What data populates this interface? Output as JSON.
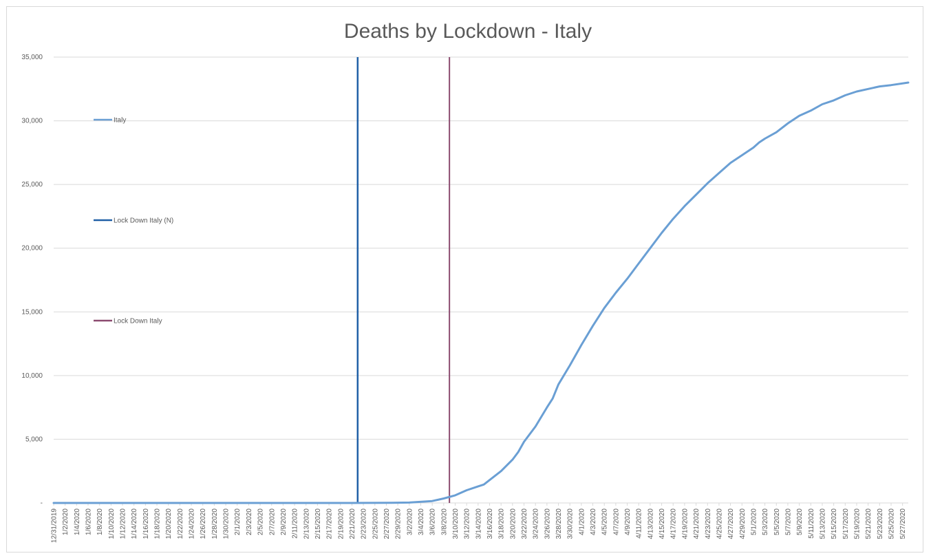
{
  "chart_data": {
    "type": "line",
    "title": "Deaths by Lockdown - Italy",
    "xlabel": "",
    "ylabel": "",
    "ylim": [
      0,
      35000
    ],
    "y_ticks": [
      0,
      5000,
      10000,
      15000,
      20000,
      25000,
      30000,
      35000
    ],
    "y_tick_labels": [
      "-",
      "5,000",
      "10,000",
      "15,000",
      "20,000",
      "25,000",
      "30,000",
      "35,000"
    ],
    "grid": true,
    "legend_position": "left",
    "x_start": "12/31/2019",
    "x_end": "5/28/2020",
    "x_tick_labels": [
      "12/31/2019",
      "1/2/2020",
      "1/4/2020",
      "1/6/2020",
      "1/8/2020",
      "1/10/2020",
      "1/12/2020",
      "1/14/2020",
      "1/16/2020",
      "1/18/2020",
      "1/20/2020",
      "1/22/2020",
      "1/24/2020",
      "1/26/2020",
      "1/28/2020",
      "1/30/2020",
      "2/1/2020",
      "2/3/2020",
      "2/5/2020",
      "2/7/2020",
      "2/9/2020",
      "2/11/2020",
      "2/13/2020",
      "2/15/2020",
      "2/17/2020",
      "2/19/2020",
      "2/21/2020",
      "2/23/2020",
      "2/25/2020",
      "2/27/2020",
      "2/29/2020",
      "3/2/2020",
      "3/4/2020",
      "3/6/2020",
      "3/8/2020",
      "3/10/2020",
      "3/12/2020",
      "3/14/2020",
      "3/16/2020",
      "3/18/2020",
      "3/20/2020",
      "3/22/2020",
      "3/24/2020",
      "3/26/2020",
      "3/28/2020",
      "3/30/2020",
      "4/1/2020",
      "4/3/2020",
      "4/5/2020",
      "4/7/2020",
      "4/9/2020",
      "4/11/2020",
      "4/13/2020",
      "4/15/2020",
      "4/17/2020",
      "4/19/2020",
      "4/21/2020",
      "4/23/2020",
      "4/25/2020",
      "4/27/2020",
      "4/29/2020",
      "5/1/2020",
      "5/3/2020",
      "5/5/2020",
      "5/7/2020",
      "5/9/2020",
      "5/11/2020",
      "5/13/2020",
      "5/15/2020",
      "5/17/2020",
      "5/19/2020",
      "5/21/2020",
      "5/23/2020",
      "5/25/2020",
      "5/27/2020"
    ],
    "series": [
      {
        "name": "Italy",
        "color": "#6a9fd4",
        "x": [
          "12/31/2019",
          "2/20/2020",
          "2/28/2020",
          "3/2/2020",
          "3/6/2020",
          "3/8/2020",
          "3/10/2020",
          "3/12/2020",
          "3/14/2020",
          "3/15/2020",
          "3/16/2020",
          "3/18/2020",
          "3/20/2020",
          "3/21/2020",
          "3/22/2020",
          "3/24/2020",
          "3/26/2020",
          "3/27/2020",
          "3/28/2020",
          "3/30/2020",
          "4/1/2020",
          "4/3/2020",
          "4/5/2020",
          "4/7/2020",
          "4/9/2020",
          "4/11/2020",
          "4/13/2020",
          "4/15/2020",
          "4/17/2020",
          "4/19/2020",
          "4/21/2020",
          "4/23/2020",
          "4/25/2020",
          "4/27/2020",
          "4/29/2020",
          "5/1/2020",
          "5/2/2020",
          "5/3/2020",
          "5/5/2020",
          "5/7/2020",
          "5/9/2020",
          "5/11/2020",
          "5/13/2020",
          "5/15/2020",
          "5/17/2020",
          "5/19/2020",
          "5/21/2020",
          "5/23/2020",
          "5/25/2020",
          "5/28/2020"
        ],
        "y": [
          0,
          0,
          10,
          30,
          150,
          350,
          600,
          1000,
          1300,
          1450,
          1800,
          2500,
          3400,
          4000,
          4800,
          6000,
          7500,
          8200,
          9300,
          10800,
          12400,
          13900,
          15300,
          16500,
          17600,
          18800,
          20000,
          21200,
          22300,
          23300,
          24200,
          25100,
          25900,
          26700,
          27300,
          27900,
          28300,
          28600,
          29100,
          29800,
          30400,
          30800,
          31300,
          31600,
          32000,
          32300,
          32500,
          32700,
          32800,
          33000
        ]
      }
    ],
    "vertical_markers": [
      {
        "name": "Lock Down Italy (N)",
        "date": "2/22/2020",
        "color": "#1f5fa6"
      },
      {
        "name": "Lock Down Italy",
        "date": "3/9/2020",
        "color": "#8b4a6f"
      }
    ]
  }
}
